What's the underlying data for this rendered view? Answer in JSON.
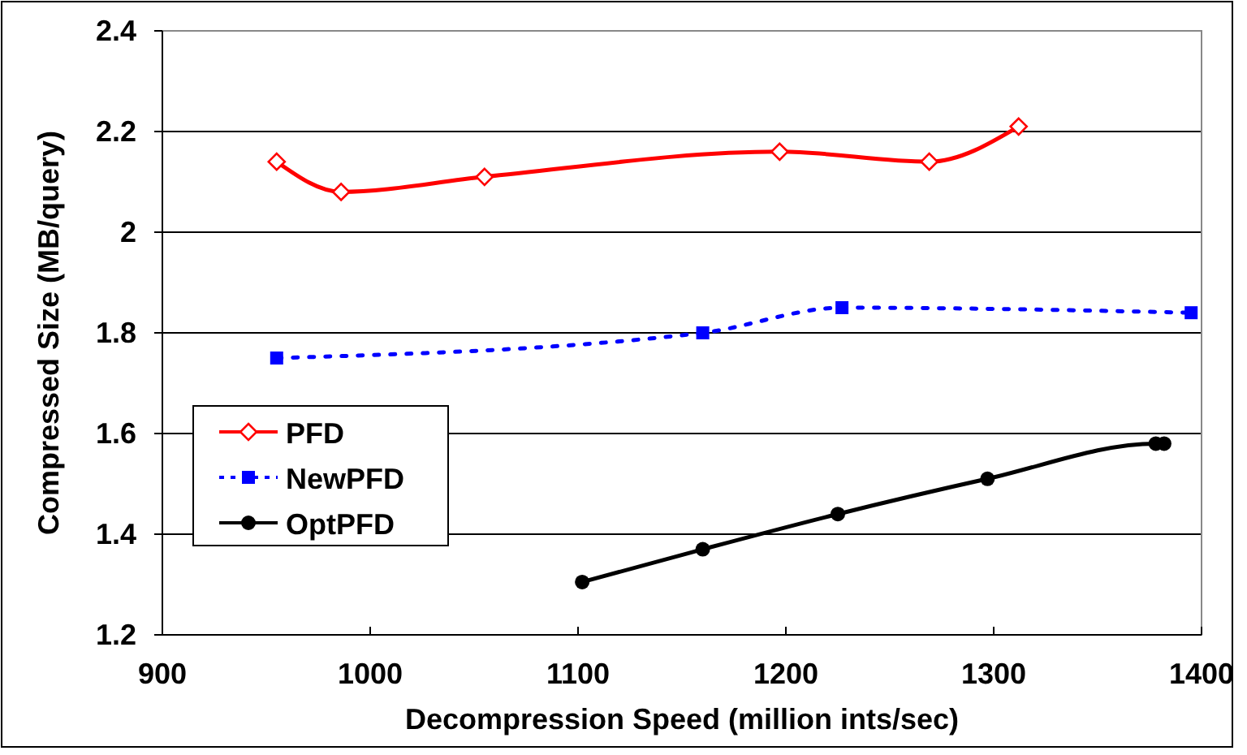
{
  "chart_data": {
    "type": "line",
    "xlabel": "Decompression Speed (million ints/sec)",
    "ylabel": "Compressed Size (MB/query)",
    "xlim": [
      900,
      1400
    ],
    "xticks": [
      900,
      1000,
      1100,
      1200,
      1300,
      1400
    ],
    "ylim": [
      1.2,
      2.4
    ],
    "yticks": [
      1.2,
      1.4,
      1.6,
      1.8,
      2,
      2.2,
      2.4
    ],
    "grid": "y",
    "legend": "left",
    "series": [
      {
        "name": "PFD",
        "color": "#ff0000",
        "marker": "diamond",
        "line_style": "solid",
        "x": [
          955,
          986,
          1055,
          1197,
          1269,
          1312
        ],
        "values": [
          2.14,
          2.08,
          2.11,
          2.16,
          2.14,
          2.21
        ]
      },
      {
        "name": "NewPFD",
        "color": "#0000ff",
        "marker": "square",
        "line_style": "dotted",
        "x": [
          955,
          1160,
          1227,
          1395
        ],
        "values": [
          1.75,
          1.8,
          1.85,
          1.84
        ]
      },
      {
        "name": "OptPFD",
        "color": "#000000",
        "marker": "circle",
        "line_style": "solid",
        "x": [
          1102,
          1160,
          1225,
          1297,
          1378,
          1382
        ],
        "values": [
          1.305,
          1.37,
          1.44,
          1.51,
          1.58,
          1.58
        ]
      }
    ]
  }
}
